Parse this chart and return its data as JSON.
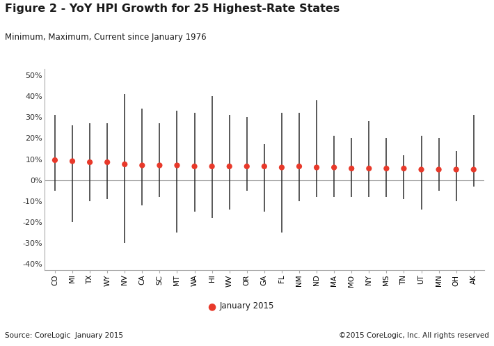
{
  "title": "Figure 2 - YoY HPI Growth for 25 Highest-Rate States",
  "subtitle": "Minimum, Maximum, Current since January 1976",
  "states": [
    "CO",
    "MI",
    "TX",
    "WY",
    "NV",
    "CA",
    "SC",
    "MT",
    "WA",
    "HI",
    "WV",
    "OR",
    "GA",
    "FL",
    "NM",
    "ND",
    "MA",
    "MO",
    "NY",
    "MS",
    "TN",
    "UT",
    "MN",
    "OH",
    "AK"
  ],
  "current": [
    9.5,
    9.0,
    8.5,
    8.5,
    7.5,
    7.0,
    7.0,
    7.0,
    6.5,
    6.5,
    6.5,
    6.5,
    6.5,
    6.0,
    6.5,
    6.0,
    6.0,
    5.5,
    5.5,
    5.5,
    5.5,
    5.0,
    5.0,
    5.0,
    5.0
  ],
  "maximum": [
    31,
    26,
    27,
    27,
    41,
    34,
    27,
    33,
    32,
    40,
    31,
    30,
    17,
    32,
    32,
    38,
    21,
    20,
    28,
    20,
    12,
    21,
    20,
    14,
    31
  ],
  "minimum": [
    -5,
    -20,
    -10,
    -9,
    -30,
    -12,
    -8,
    -25,
    -15,
    -18,
    -14,
    -5,
    -15,
    -25,
    -10,
    -8,
    -8,
    -8,
    -8,
    -8,
    -9,
    -14,
    -5,
    -10,
    -3
  ],
  "dot_color": "#e8392a",
  "line_color": "#2b2b2b",
  "source_left": "Source: CoreLogic  January 2015",
  "source_right": "©2015 CoreLogic, Inc. All rights reserved",
  "legend_label": "January 2015",
  "ylim": [
    -43,
    53
  ],
  "yticks": [
    -40,
    -30,
    -20,
    -10,
    0,
    10,
    20,
    30,
    40,
    50
  ],
  "background_color": "#ffffff",
  "title_fontsize": 11.5,
  "subtitle_fontsize": 8.5
}
